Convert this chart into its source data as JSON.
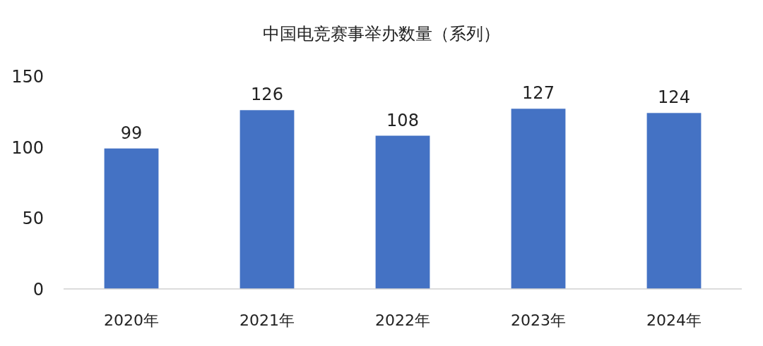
{
  "chart_data": {
    "type": "bar",
    "title": "中国电竞赛事举办数量（系列）",
    "categories": [
      "2020年",
      "2021年",
      "2022年",
      "2023年",
      "2024年"
    ],
    "values": [
      99,
      126,
      108,
      127,
      124
    ],
    "color": "#4472c4",
    "ylim": [
      0,
      150
    ],
    "yticks": [
      0,
      50,
      100,
      150
    ],
    "data_labels": true
  }
}
